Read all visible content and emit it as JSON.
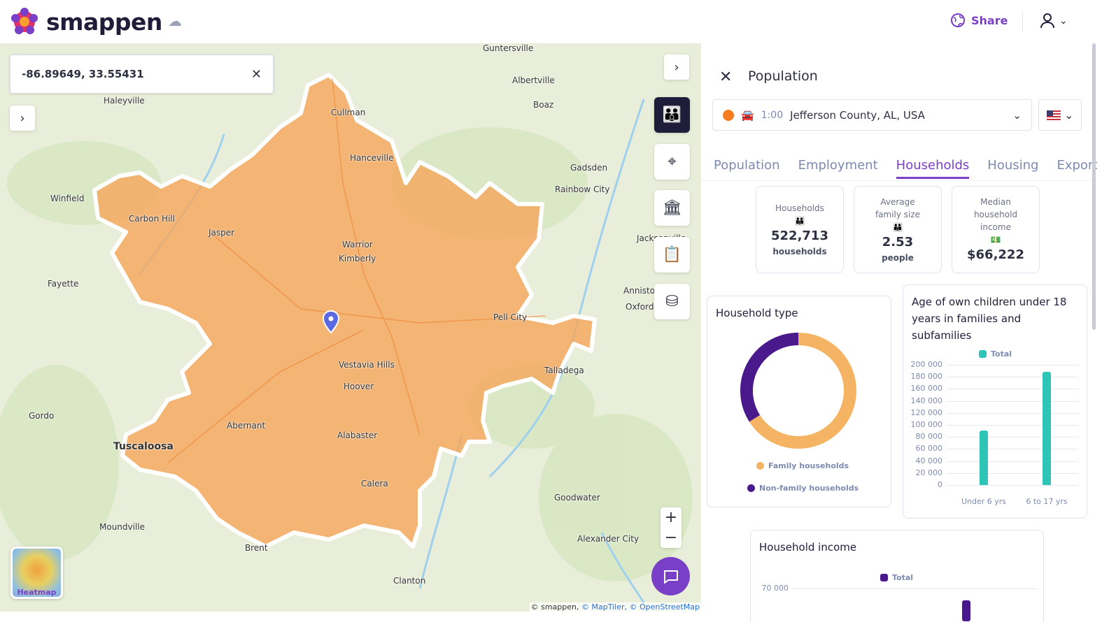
{
  "header": {
    "brand": "smappen",
    "share_label": "Share",
    "colors": {
      "brand": "#7a3fc7",
      "logo_dark": "#1f1d3a"
    }
  },
  "map": {
    "search_value": "-86.89649, 33.55431",
    "heatmap_label": "Heatmap",
    "attribution": {
      "prefix": "© smappen,",
      "maptiler": "© MapTiler,",
      "osm": "© OpenStreetMap"
    },
    "area_color": "#f5a55a",
    "labels": [
      "Guntersville",
      "Albertville",
      "Haleyville",
      "Cullman",
      "Boaz",
      "Hanceville",
      "Gadsden",
      "Rainbow City",
      "Winfield",
      "Carbon Hill",
      "Jasper",
      "Warrior",
      "Kimberly",
      "Fayette",
      "Jacksonville",
      "Anniston",
      "Oxford",
      "Pell City",
      "Vestavia Hills",
      "Hoover",
      "Talladega",
      "Gordo",
      "Abernant",
      "Tuscaloosa",
      "Alabaster",
      "Calera",
      "Goodwater",
      "Moundville",
      "Alexander City",
      "Brent",
      "Clanton"
    ],
    "tools": [
      "population-icon",
      "poi-icon",
      "institution-icon",
      "clipboard-icon",
      "database-icon"
    ]
  },
  "panel": {
    "title": "Population",
    "selector": {
      "time": "1:00",
      "location": "Jefferson County, AL, USA",
      "travel_mode": "car-icon",
      "dot_color": "#f57c1f"
    },
    "tabs": [
      "Population",
      "Employment",
      "Households",
      "Housing",
      "Export"
    ],
    "active_tab": "Households",
    "stats": [
      {
        "label": "Households",
        "value": "522,713",
        "unit": "households",
        "icon": "family-icon"
      },
      {
        "label": "Average family size",
        "value": "2.53",
        "unit": "people",
        "icon": "family-icon"
      },
      {
        "label": "Median household income",
        "value": "$66,222",
        "unit": "",
        "icon": "money-icon"
      }
    ]
  },
  "chart_data": [
    {
      "type": "pie",
      "title": "Household type",
      "donut": true,
      "series": [
        {
          "name": "Family households",
          "value": 66,
          "color": "#f5b463"
        },
        {
          "name": "Non-family households",
          "value": 34,
          "color": "#4a1a8c"
        }
      ],
      "legend": "bottom"
    },
    {
      "type": "bar",
      "title": "Age of own children under 18 years in families and subfamilies",
      "categories": [
        "Under 6 yrs",
        "6 to 17 yrs"
      ],
      "series": [
        {
          "name": "Total",
          "values": [
            91000,
            188000
          ],
          "color": "#2ec4b6"
        }
      ],
      "yticks": [
        "200 000",
        "180 000",
        "160 000",
        "140 000",
        "120 000",
        "100 000",
        "80 000",
        "60 000",
        "40 000",
        "20 000",
        "0"
      ],
      "ylim": [
        0,
        200000
      ],
      "grid": true,
      "legend": "top"
    },
    {
      "type": "bar",
      "title": "Household income",
      "series": [
        {
          "name": "Total",
          "color": "#4a1a8c"
        }
      ],
      "yticks": [
        "70 000"
      ],
      "legend": "top"
    }
  ]
}
